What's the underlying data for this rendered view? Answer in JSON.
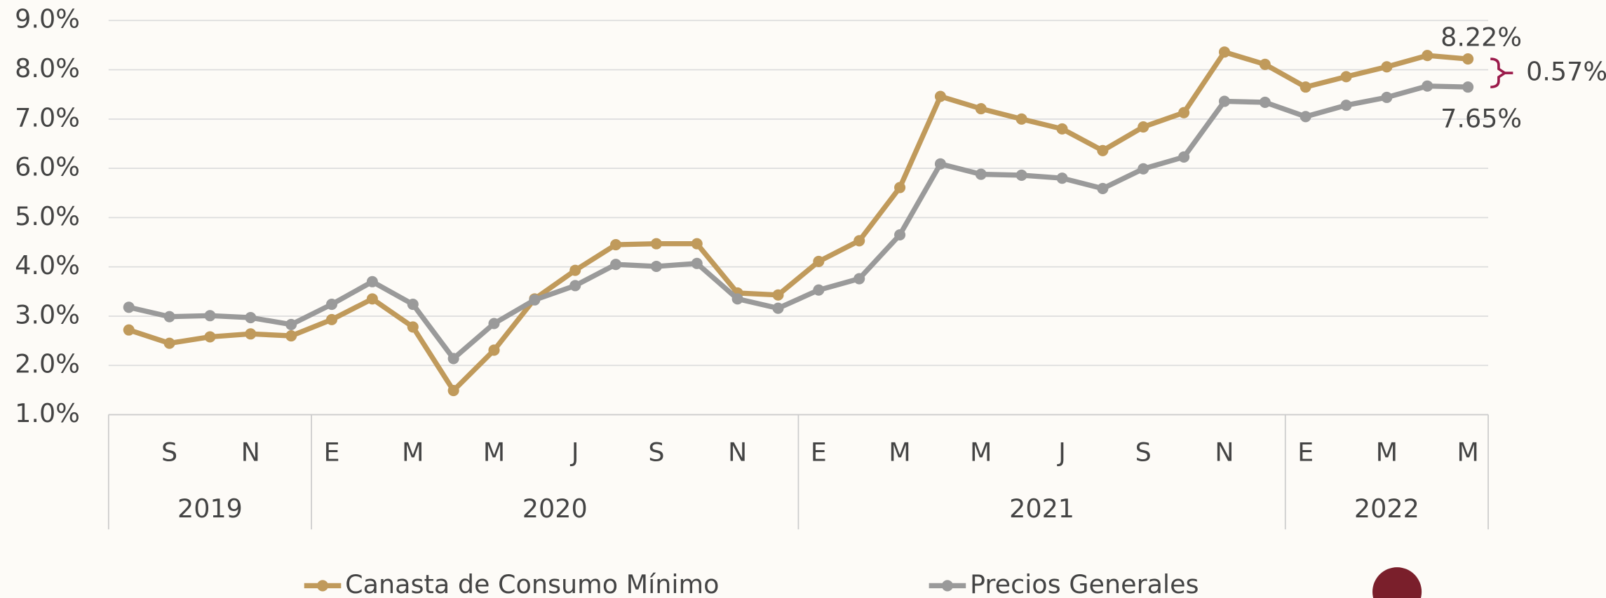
{
  "chart_data": {
    "type": "line",
    "categories": [
      null,
      "S",
      null,
      "N",
      null,
      "E",
      null,
      "M",
      null,
      "M",
      null,
      "J",
      null,
      "S",
      null,
      "N",
      null,
      "E",
      null,
      "M",
      null,
      "M",
      null,
      "J",
      null,
      "S",
      null,
      "N",
      null,
      "E",
      null,
      "M",
      null,
      "M"
    ],
    "years": [
      "2019",
      null,
      null,
      null,
      null,
      "2020",
      null,
      null,
      null,
      null,
      null,
      null,
      null,
      null,
      null,
      null,
      null,
      "2021",
      null,
      null,
      null,
      null,
      null,
      null,
      null,
      null,
      null,
      null,
      null,
      "2022",
      null,
      null,
      null,
      null
    ],
    "series": [
      {
        "name": "Canasta de Consumo Mínimo",
        "color": "#c09a5b",
        "values": [
          2.72,
          2.45,
          2.58,
          2.64,
          2.6,
          2.93,
          3.35,
          2.78,
          1.49,
          2.31,
          3.35,
          3.93,
          4.45,
          4.47,
          4.47,
          3.47,
          3.43,
          4.11,
          4.53,
          5.61,
          7.46,
          7.21,
          7.0,
          6.8,
          6.36,
          6.84,
          7.13,
          8.36,
          8.11,
          7.65,
          7.86,
          8.06,
          8.29,
          8.22
        ],
        "value_labels": [
          null,
          null,
          null,
          null,
          null,
          null,
          null,
          null,
          null,
          null,
          null,
          null,
          null,
          null,
          null,
          null,
          null,
          null,
          null,
          null,
          null,
          null,
          null,
          null,
          null,
          null,
          null,
          null,
          null,
          null,
          null,
          null,
          null,
          "8.22%"
        ]
      },
      {
        "name": "Precios Generales",
        "color": "#9a9a9a",
        "values": [
          3.18,
          2.99,
          3.01,
          2.97,
          2.83,
          3.24,
          3.7,
          3.24,
          2.14,
          2.85,
          3.33,
          3.62,
          4.05,
          4.01,
          4.07,
          3.35,
          3.16,
          3.53,
          3.76,
          4.65,
          6.09,
          5.88,
          5.86,
          5.8,
          5.59,
          5.99,
          6.23,
          7.36,
          7.34,
          7.05,
          7.28,
          7.44,
          7.67,
          7.65
        ],
        "value_labels": [
          null,
          null,
          null,
          null,
          null,
          null,
          null,
          null,
          null,
          null,
          null,
          null,
          null,
          null,
          null,
          null,
          null,
          null,
          null,
          null,
          null,
          null,
          null,
          null,
          null,
          null,
          null,
          null,
          null,
          null,
          null,
          null,
          null,
          "7.65%"
        ]
      }
    ],
    "annotation": "0.57%",
    "ylim": [
      1,
      9
    ],
    "yticks": [
      {
        "value": 1,
        "label": "1.0%"
      },
      {
        "value": 2,
        "label": "2.0%"
      },
      {
        "value": 3,
        "label": "3.0%"
      },
      {
        "value": 4,
        "label": "4.0%"
      },
      {
        "value": 5,
        "label": "5.0%"
      },
      {
        "value": 6,
        "label": "6.0%"
      },
      {
        "value": 7,
        "label": "7.0%"
      },
      {
        "value": 8,
        "label": "8.0%"
      },
      {
        "value": 9,
        "label": "9.0%"
      }
    ],
    "grid": true
  }
}
